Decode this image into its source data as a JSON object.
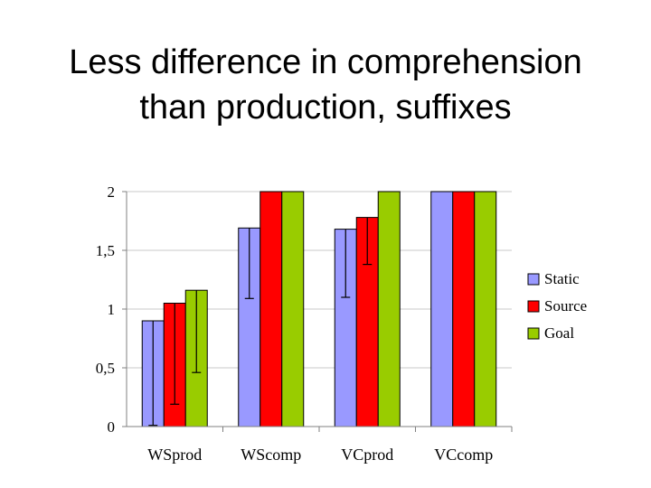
{
  "slide": {
    "title_line1": "Less difference in comprehension",
    "title_line2": "than production, suffixes"
  },
  "chart_data": {
    "type": "bar",
    "title": "",
    "xlabel": "",
    "ylabel": "",
    "ylim": [
      0,
      2
    ],
    "yticks": [
      0,
      0.5,
      1,
      1.5,
      2
    ],
    "ytick_labels": [
      "0",
      "0,5",
      "1",
      "1,5",
      "2"
    ],
    "grid": true,
    "legend_position": "right",
    "categories": [
      "WSprod",
      "WScomp",
      "VCprod",
      "VCcomp"
    ],
    "series": [
      {
        "name": "Static",
        "color": "#9999FF",
        "values": [
          0.9,
          1.69,
          1.68,
          2.0
        ],
        "error": [
          0.89,
          0.6,
          0.58,
          0
        ]
      },
      {
        "name": "Source",
        "color": "#FF0000",
        "values": [
          1.05,
          2.0,
          1.78,
          2.0
        ],
        "error": [
          0.86,
          0,
          0.4,
          0
        ]
      },
      {
        "name": "Goal",
        "color": "#99CC00",
        "values": [
          1.16,
          2.0,
          2.0,
          2.0
        ],
        "error": [
          0.7,
          0,
          0,
          0
        ]
      }
    ]
  }
}
